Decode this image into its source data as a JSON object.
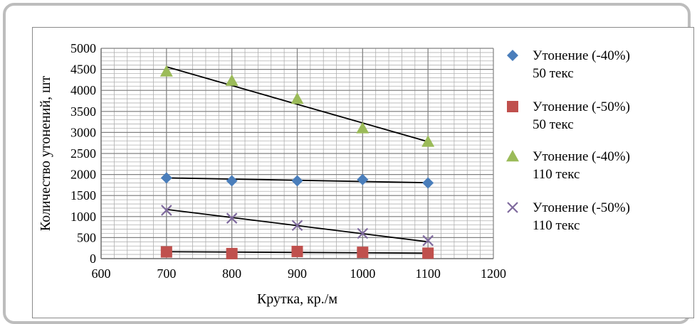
{
  "chart_data": {
    "type": "scatter",
    "xlabel": "Крутка, кр./м",
    "ylabel": "Количество утонений, шт",
    "xlim": [
      600,
      1200
    ],
    "ylim": [
      0,
      5000
    ],
    "xticks": [
      600,
      700,
      800,
      900,
      1000,
      1100,
      1200
    ],
    "yticks": [
      0,
      500,
      1000,
      1500,
      2000,
      2500,
      3000,
      3500,
      4000,
      4500,
      5000
    ],
    "grid": true,
    "legend_position": "right",
    "series": [
      {
        "name_line1": "Утонение  (-40%)",
        "name_line2": "50 текс",
        "marker": "diamond",
        "color": "#4a7ebb",
        "x": [
          700,
          800,
          900,
          1000,
          1100
        ],
        "y": [
          1920,
          1850,
          1850,
          1880,
          1800
        ],
        "trend": [
          1920,
          1805
        ]
      },
      {
        "name_line1": "Утонение   (-50%)",
        "name_line2": "50 текс",
        "marker": "square",
        "color": "#c0504d",
        "x": [
          700,
          800,
          900,
          1000,
          1100
        ],
        "y": [
          160,
          120,
          170,
          150,
          130
        ],
        "trend": [
          165,
          130
        ]
      },
      {
        "name_line1": "Утонение    (-40%)",
        "name_line2": "110 текс",
        "marker": "triangle",
        "color": "#9bbb59",
        "x": [
          700,
          800,
          900,
          1000,
          1100
        ],
        "y": [
          4450,
          4230,
          3800,
          3100,
          2780
        ],
        "trend": [
          4560,
          2780
        ]
      },
      {
        "name_line1": "Утонение    (-50%)",
        "name_line2": "110 текс",
        "marker": "x",
        "color": "#7f6a9e",
        "x": [
          700,
          800,
          900,
          1000,
          1100
        ],
        "y": [
          1150,
          960,
          790,
          600,
          430
        ],
        "trend": [
          1170,
          400
        ]
      }
    ]
  }
}
